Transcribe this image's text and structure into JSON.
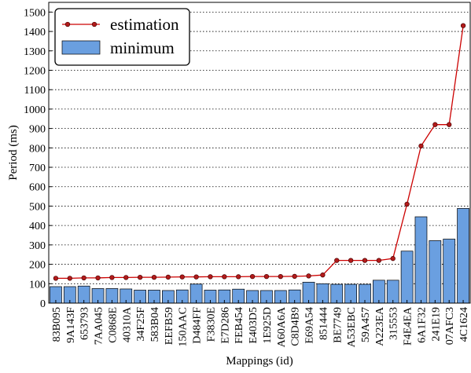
{
  "chart_data": {
    "type": "bar+line",
    "xlabel": "Mappings (id)",
    "ylabel": "Period (ms)",
    "ylim": [
      0,
      1550
    ],
    "yticks": [
      0,
      100,
      200,
      300,
      400,
      500,
      600,
      700,
      800,
      900,
      1000,
      1100,
      1200,
      1300,
      1400,
      1500
    ],
    "grid": "horizontal dotted",
    "legend_position": "top-left",
    "categories": [
      "83B095",
      "9A143F",
      "653793",
      "7AA045",
      "C0868E",
      "40310A",
      "34F25F",
      "583B04",
      "EEFB59",
      "150AAC",
      "D484FF",
      "F3830E",
      "E7D286",
      "FEB454",
      "E403D5",
      "1E925D",
      "A60A6A",
      "C8D4B9",
      "E69A54",
      "851444",
      "BE7749",
      "A53EBC",
      "59A457",
      "A223EA",
      "315553",
      "F4E4EA",
      "6A1F32",
      "241E19",
      "07AFC3",
      "4C1624"
    ],
    "series": [
      {
        "name": "estimation",
        "kind": "line",
        "color": "#cc0000",
        "values": [
          128,
          128,
          130,
          130,
          132,
          132,
          133,
          133,
          134,
          135,
          135,
          136,
          136,
          136,
          137,
          137,
          137,
          138,
          140,
          145,
          220,
          220,
          220,
          220,
          230,
          510,
          810,
          920,
          920,
          1430
        ]
      },
      {
        "name": "minimum",
        "kind": "bar",
        "color": "#6a9fe0",
        "values": [
          85,
          85,
          88,
          75,
          75,
          73,
          67,
          67,
          65,
          68,
          98,
          67,
          68,
          72,
          65,
          65,
          65,
          68,
          108,
          100,
          97,
          97,
          97,
          118,
          118,
          268,
          445,
          322,
          330,
          488
        ]
      }
    ]
  }
}
